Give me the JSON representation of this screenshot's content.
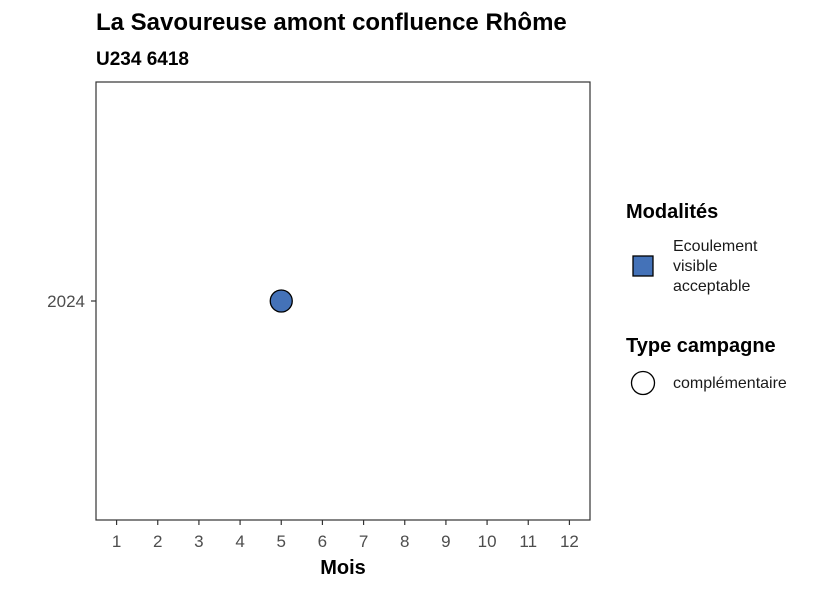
{
  "chart_data": {
    "type": "scatter",
    "title": "La Savoureuse amont confluence Rhôme",
    "subtitle": "U234 6418",
    "xlabel": "Mois",
    "ylabel": "",
    "x_ticks": [
      "1",
      "2",
      "3",
      "4",
      "5",
      "6",
      "7",
      "8",
      "9",
      "10",
      "11",
      "12"
    ],
    "xlim": [
      0.5,
      12.5
    ],
    "y_categories": [
      "2024"
    ],
    "grid": false,
    "legend_position": "right",
    "points": [
      {
        "x": 5,
        "y": "2024",
        "modalite": "Ecoulement visible acceptable",
        "type_campagne": "complémentaire",
        "color": "#4472b8"
      }
    ],
    "legends": [
      {
        "title": "Modalités",
        "items": [
          {
            "label_lines": [
              "Ecoulement",
              "visible",
              "acceptable"
            ],
            "shape": "square",
            "color": "#4472b8"
          }
        ]
      },
      {
        "title": "Type campagne",
        "items": [
          {
            "label_lines": [
              "complémentaire"
            ],
            "shape": "circle",
            "color": "#ffffff"
          }
        ]
      }
    ]
  }
}
